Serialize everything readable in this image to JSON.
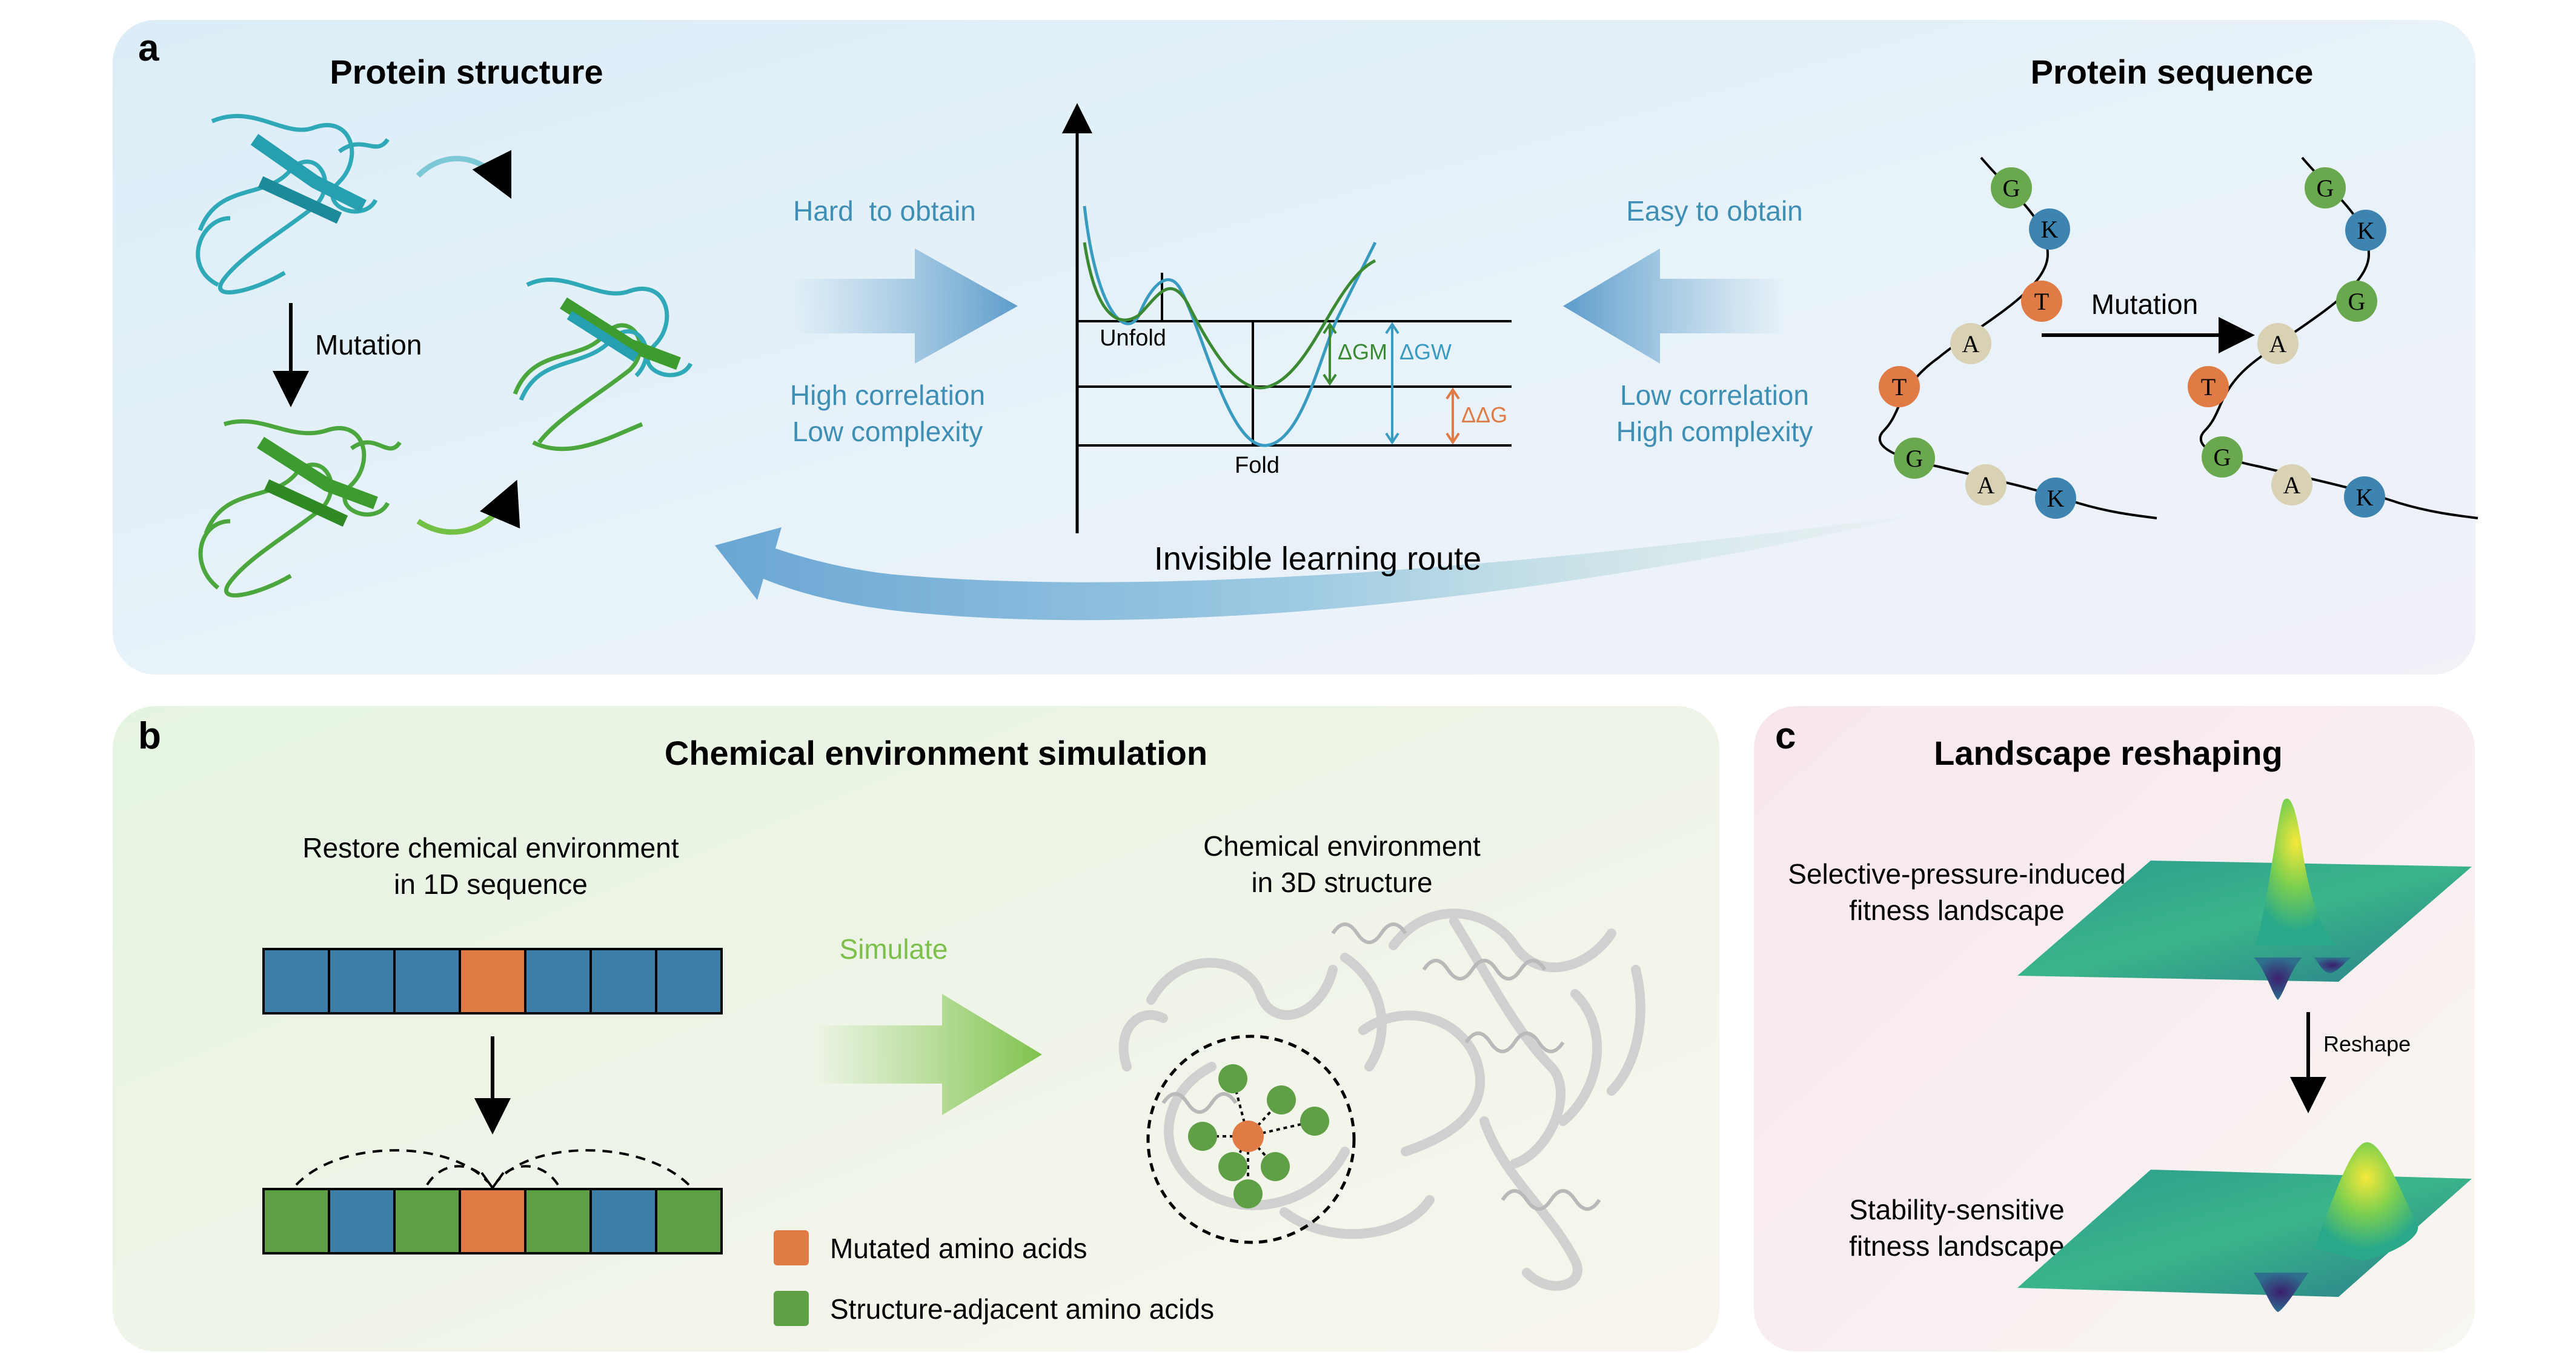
{
  "panel_a": {
    "letter": "a",
    "structure_title": "Protein structure",
    "sequence_title": "Protein sequence",
    "mutation_left": "Mutation",
    "mutation_right": "Mutation",
    "hard_to_obtain": "Hard  to obtain",
    "easy_to_obtain": "Easy to obtain",
    "high_correlation": "High correlation",
    "low_complexity": "Low complexity",
    "low_correlation": "Low correlation",
    "high_complexity": "High complexity",
    "unfold_label": "Unfold",
    "fold_label": "Fold",
    "dgm_label": "ΔGM",
    "dgw_label": "ΔGW",
    "ddg_label": "ΔΔG",
    "route_label": "Invisible learning route",
    "wild_sequence": [
      "G",
      "K",
      "T",
      "A",
      "T",
      "G",
      "A",
      "K"
    ],
    "mutant_sequence": [
      "G",
      "K",
      "G",
      "A",
      "T",
      "G",
      "A",
      "K"
    ]
  },
  "panel_b": {
    "letter": "b",
    "title": "Chemical environment simulation",
    "restore_line1": "Restore chemical environment",
    "restore_line2": "in 1D sequence",
    "chem3d_line1": "Chemical environment",
    "chem3d_line2": "in 3D structure",
    "simulate_label": "Simulate",
    "legend_mutated": "Mutated amino acids",
    "legend_adjacent": "Structure-adjacent amino acids"
  },
  "panel_c": {
    "letter": "c",
    "title": "Landscape reshaping",
    "selective_line1": "Selective-pressure-induced",
    "selective_line2": "fitness landscape",
    "reshape_label": "Reshape",
    "stability_line1": "Stability-sensitive",
    "stability_line2": "fitness landscape"
  },
  "colors": {
    "teal_text": "#3f8fb4",
    "green_text": "#7cbf4a",
    "residue_G": "#6aa84f",
    "residue_K": "#3d85b0",
    "residue_T": "#e07b45",
    "residue_A": "#d8d1b4",
    "seq_blue": "#3d7fa8",
    "seq_green": "#5f9f45",
    "seq_orange": "#e07b45"
  }
}
